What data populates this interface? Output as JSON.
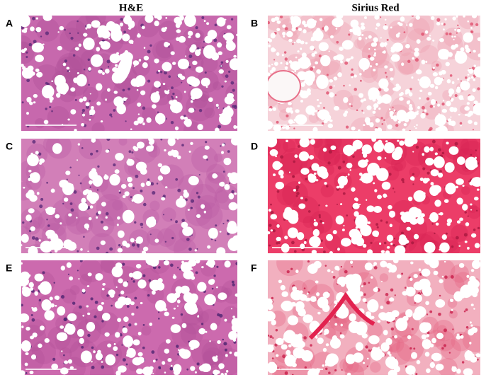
{
  "columns": [
    {
      "title": "H&E"
    },
    {
      "title": "Sirius Red"
    }
  ],
  "panels": [
    {
      "label": "A"
    },
    {
      "label": "B"
    },
    {
      "label": "C"
    },
    {
      "label": "D"
    },
    {
      "label": "E"
    },
    {
      "label": "F"
    }
  ]
}
